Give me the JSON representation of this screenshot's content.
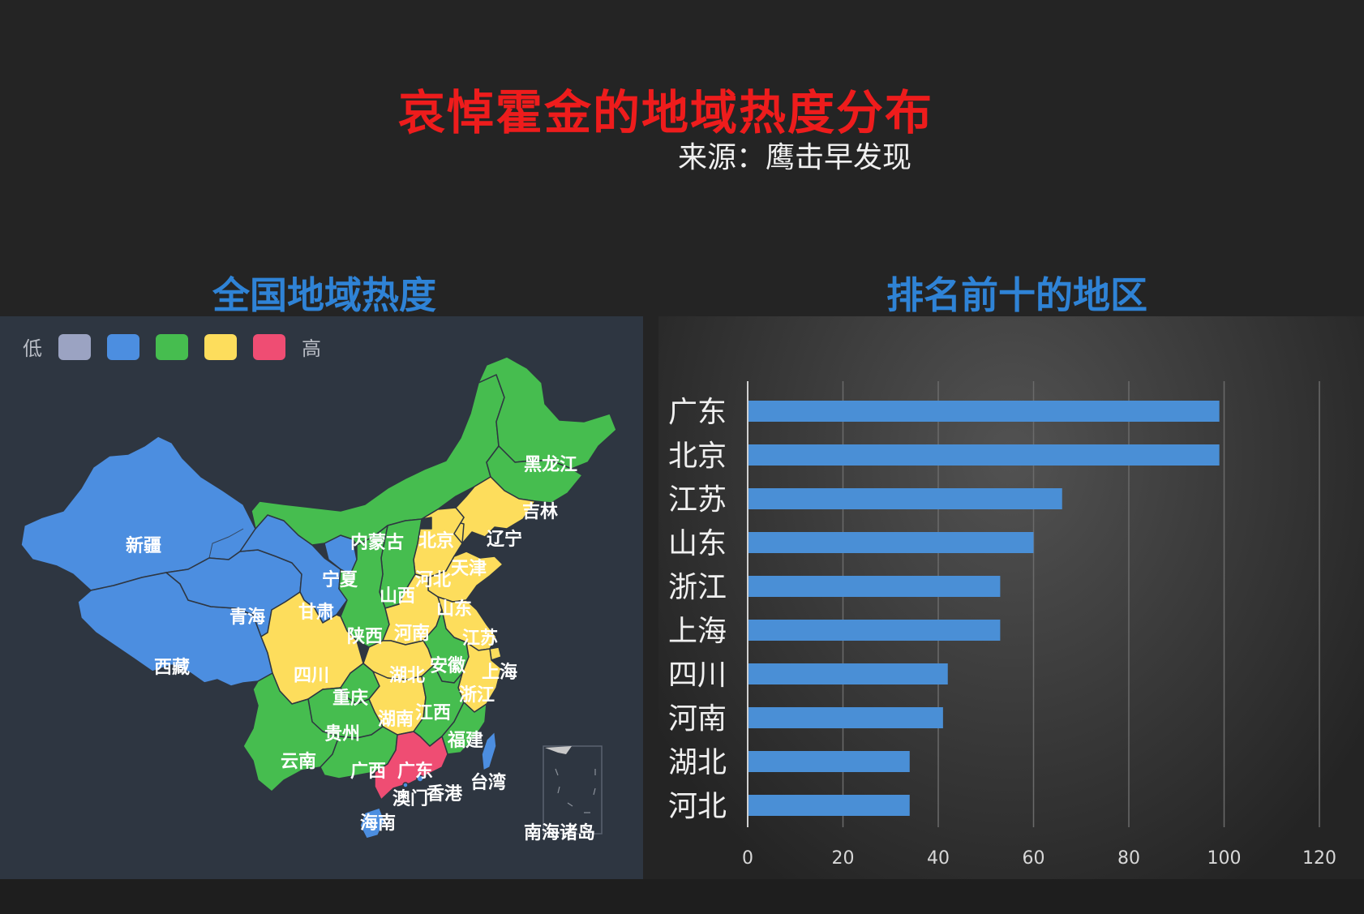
{
  "title": "哀悼霍金的地域热度分布",
  "source": "来源：鹰击早发现",
  "map_panel": {
    "title": "全国地域热度",
    "legend": {
      "low_label": "低",
      "high_label": "高",
      "colors": [
        "#9ba3c2",
        "#4c8ee0",
        "#46bd4f",
        "#fddd5c",
        "#ef4d73"
      ]
    },
    "regions": {
      "xinjiang": {
        "label": "新疆",
        "color": "#4c8ee0"
      },
      "xizang": {
        "label": "西藏",
        "color": "#4c8ee0"
      },
      "qinghai": {
        "label": "青海",
        "color": "#4c8ee0"
      },
      "gansu": {
        "label": "甘肃",
        "color": "#4c8ee0"
      },
      "ningxia": {
        "label": "宁夏",
        "color": "#4c8ee0"
      },
      "neimenggu": {
        "label": "内蒙古",
        "color": "#46bd4f"
      },
      "heilongjiang": {
        "label": "黑龙江",
        "color": "#46bd4f"
      },
      "jilin": {
        "label": "吉林",
        "color": "#46bd4f"
      },
      "liaoning": {
        "label": "辽宁",
        "color": "#fddd5c"
      },
      "beijing": {
        "label": "北京",
        "color": "#ef4d73"
      },
      "tianjin": {
        "label": "天津",
        "color": "#fddd5c"
      },
      "hebei": {
        "label": "河北",
        "color": "#fddd5c"
      },
      "shanxi": {
        "label": "山西",
        "color": "#46bd4f"
      },
      "shandong": {
        "label": "山东",
        "color": "#fddd5c"
      },
      "shaanxi": {
        "label": "陕西",
        "color": "#46bd4f"
      },
      "henan": {
        "label": "河南",
        "color": "#fddd5c"
      },
      "jiangsu": {
        "label": "江苏",
        "color": "#fddd5c"
      },
      "shanghai": {
        "label": "上海",
        "color": "#fddd5c"
      },
      "anhui": {
        "label": "安徽",
        "color": "#46bd4f"
      },
      "hubei": {
        "label": "湖北",
        "color": "#fddd5c"
      },
      "sichuan": {
        "label": "四川",
        "color": "#fddd5c"
      },
      "chongqing": {
        "label": "重庆",
        "color": "#46bd4f"
      },
      "zhejiang": {
        "label": "浙江",
        "color": "#fddd5c"
      },
      "hunan": {
        "label": "湖南",
        "color": "#fddd5c"
      },
      "jiangxi": {
        "label": "江西",
        "color": "#46bd4f"
      },
      "guizhou": {
        "label": "贵州",
        "color": "#46bd4f"
      },
      "fujian": {
        "label": "福建",
        "color": "#46bd4f"
      },
      "yunnan": {
        "label": "云南",
        "color": "#46bd4f"
      },
      "guangxi": {
        "label": "广西",
        "color": "#46bd4f"
      },
      "guangdong": {
        "label": "广东",
        "color": "#ef4d73"
      },
      "taiwan": {
        "label": "台湾",
        "color": "#4c8ee0"
      },
      "aomen": {
        "label": "澳门",
        "color": "#4c8ee0"
      },
      "xianggang": {
        "label": "香港",
        "color": "#4c8ee0"
      },
      "hainan": {
        "label": "海南",
        "color": "#4c8ee0"
      },
      "nanhai": {
        "label": "南海诸岛"
      }
    }
  },
  "chart_panel": {
    "title": "排名前十的地区"
  },
  "chart_data": {
    "type": "bar",
    "orientation": "horizontal",
    "categories": [
      "广东",
      "北京",
      "江苏",
      "山东",
      "浙江",
      "上海",
      "四川",
      "河南",
      "湖北",
      "河北"
    ],
    "values": [
      99,
      99,
      66,
      60,
      53,
      53,
      42,
      41,
      34,
      34
    ],
    "xlim": [
      0,
      120
    ],
    "xticks": [
      0,
      20,
      40,
      60,
      80,
      100,
      120
    ],
    "grid": true,
    "bar_color": "#4a8fd6"
  }
}
